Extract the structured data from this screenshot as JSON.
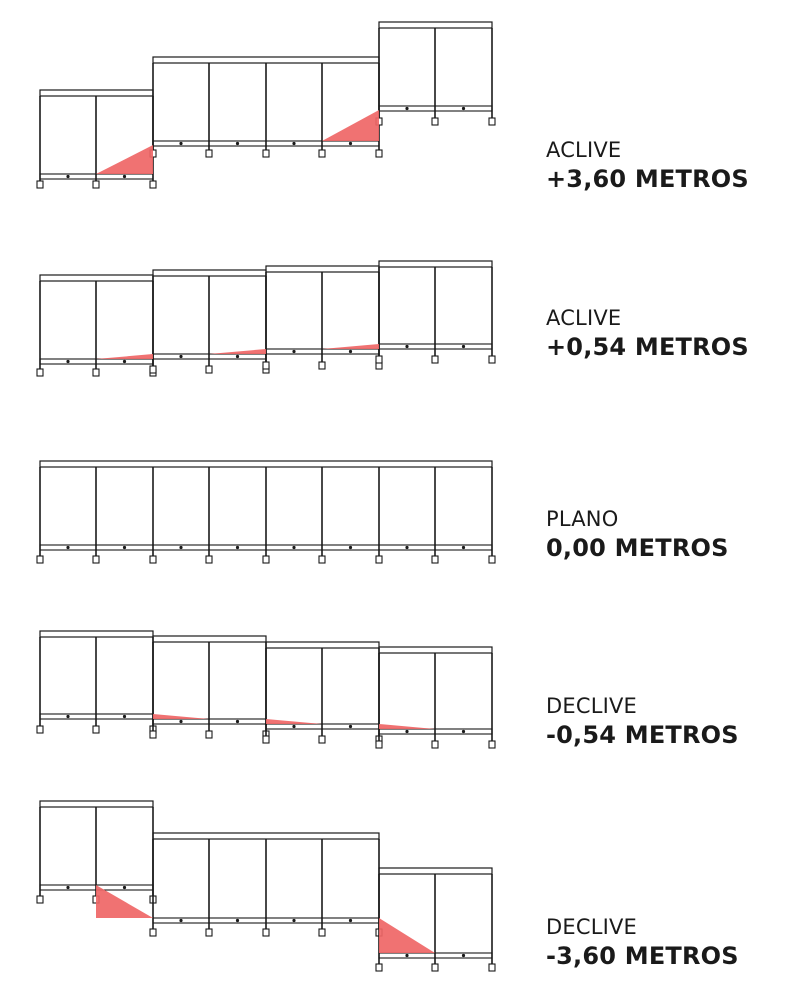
{
  "colors": {
    "line": "#1a1a1a",
    "slope_fill": "#ef6666",
    "background": "#ffffff"
  },
  "rows": [
    {
      "type": "ACLIVE",
      "value": "+3,60 METROS"
    },
    {
      "type": "ACLIVE",
      "value": "+0,54 METROS"
    },
    {
      "type": "PLANO",
      "value": "0,00 METROS"
    },
    {
      "type": "DECLIVE",
      "value": "-0,54 METROS"
    },
    {
      "type": "DECLIVE",
      "value": "-3,60 METROS"
    }
  ]
}
